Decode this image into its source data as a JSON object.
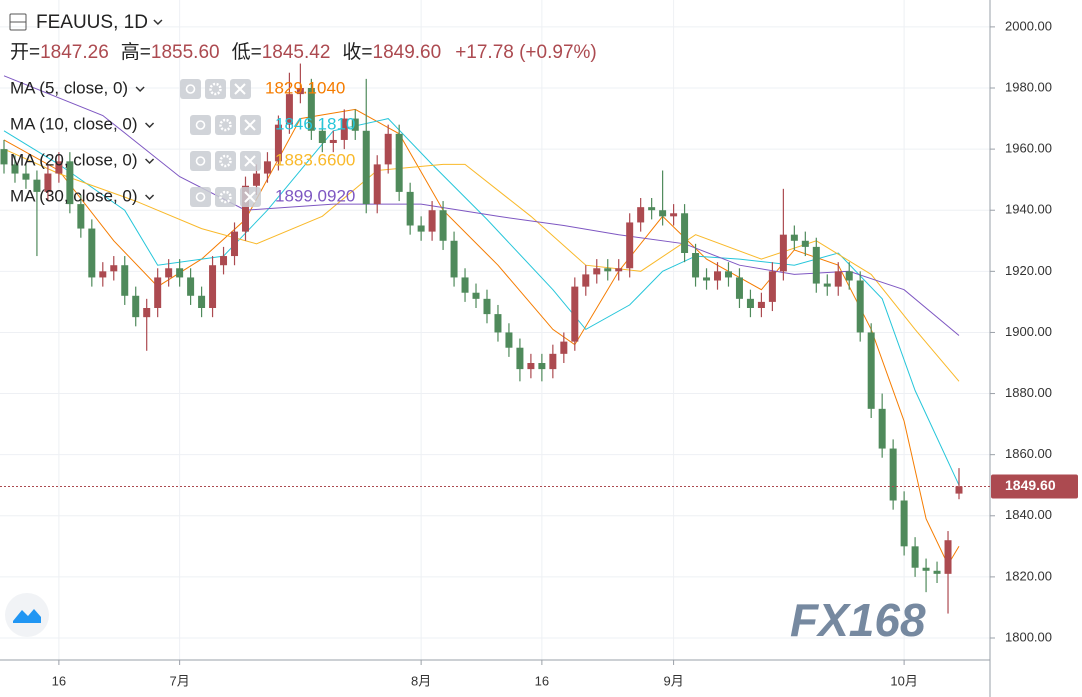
{
  "chart_data": {
    "type": "candlestick",
    "title": "FEAUUS, 1D",
    "ohlc_header": [
      {
        "label": "开=",
        "value": "1847.26"
      },
      {
        "label": "高=",
        "value": "1855.60"
      },
      {
        "label": "低=",
        "value": "1845.42"
      },
      {
        "label": "收=",
        "value": "1849.60"
      }
    ],
    "change": "+17.78 (+0.97%)",
    "categories": [
      null,
      null,
      null,
      null,
      null,
      "16",
      null,
      null,
      null,
      null,
      null,
      null,
      null,
      null,
      null,
      null,
      "7月",
      null,
      null,
      null,
      null,
      null,
      null,
      null,
      null,
      null,
      null,
      null,
      null,
      null,
      null,
      null,
      null,
      null,
      null,
      null,
      null,
      null,
      "8月",
      null,
      null,
      null,
      null,
      null,
      null,
      null,
      null,
      null,
      null,
      "16",
      null,
      null,
      null,
      null,
      null,
      null,
      null,
      null,
      null,
      null,
      null,
      "9月",
      null,
      null,
      null,
      null,
      null,
      null,
      null,
      null,
      null,
      null,
      null,
      null,
      null,
      null,
      null,
      null,
      null,
      null,
      null,
      null,
      "10月",
      null,
      null,
      null,
      null,
      null
    ],
    "open": [
      1960,
      1955,
      1952,
      1950,
      1946,
      1952,
      1956,
      1942,
      1934,
      1918,
      1920,
      1922,
      1912,
      1905,
      1908,
      1918,
      1921,
      1918,
      1912,
      1908,
      1922,
      1925,
      1933,
      1948,
      1952,
      1956,
      1968,
      1978,
      1980,
      1966,
      1962,
      1963,
      1970,
      1966,
      1942,
      1955,
      1965,
      1946,
      1935,
      1933,
      1940,
      1930,
      1918,
      1913,
      1911,
      1906,
      1900,
      1895,
      1888,
      1890,
      1888,
      1893,
      1897,
      1915,
      1919,
      1921,
      1920,
      1921,
      1936,
      1941,
      1940,
      1938,
      1939,
      1926,
      1918,
      1917,
      1920,
      1918,
      1911,
      1908,
      1910,
      1920,
      1932,
      1930,
      1928,
      1916,
      1915,
      1920,
      1917,
      1900,
      1875,
      1862,
      1845,
      1830,
      1823,
      1822,
      1821,
      1847.26
    ],
    "high": [
      1963,
      1958,
      1955,
      1953,
      1955,
      1959,
      1959,
      1945,
      1937,
      1923,
      1925,
      1925,
      1915,
      1911,
      1921,
      1924,
      1924,
      1921,
      1915,
      1925,
      1928,
      1936,
      1951,
      1955,
      1959,
      1971,
      1985,
      1988,
      1983,
      1969,
      1966,
      1973,
      1973,
      1983,
      1958,
      1968,
      1968,
      1949,
      1938,
      1943,
      1943,
      1933,
      1921,
      1916,
      1914,
      1909,
      1903,
      1898,
      1893,
      1893,
      1896,
      1900,
      1918,
      1922,
      1924,
      1924,
      1924,
      1939,
      1944,
      1944,
      1953,
      1942,
      1942,
      1929,
      1921,
      1923,
      1923,
      1921,
      1914,
      1913,
      1923,
      1947,
      1935,
      1933,
      1931,
      1919,
      1923,
      1923,
      1920,
      1903,
      1880,
      1865,
      1848,
      1833,
      1826,
      1825,
      1835,
      1855.6
    ],
    "low": [
      1952,
      1949,
      1947,
      1925,
      1943,
      1949,
      1939,
      1931,
      1915,
      1915,
      1917,
      1909,
      1902,
      1894,
      1905,
      1915,
      1915,
      1909,
      1905,
      1905,
      1919,
      1922,
      1930,
      1945,
      1949,
      1953,
      1965,
      1975,
      1963,
      1959,
      1959,
      1960,
      1963,
      1939,
      1939,
      1952,
      1943,
      1932,
      1930,
      1930,
      1927,
      1915,
      1910,
      1908,
      1903,
      1897,
      1892,
      1884,
      1885,
      1884,
      1885,
      1890,
      1894,
      1912,
      1916,
      1917,
      1917,
      1918,
      1933,
      1937,
      1935,
      1935,
      1923,
      1915,
      1914,
      1914,
      1915,
      1908,
      1905,
      1905,
      1907,
      1917,
      1927,
      1925,
      1913,
      1912,
      1912,
      1914,
      1897,
      1872,
      1859,
      1842,
      1827,
      1820,
      1815,
      1818,
      1808,
      1845.42
    ],
    "close": [
      1955,
      1952,
      1950,
      1946,
      1952,
      1956,
      1942,
      1934,
      1918,
      1920,
      1922,
      1912,
      1905,
      1908,
      1918,
      1921,
      1918,
      1912,
      1908,
      1922,
      1925,
      1933,
      1948,
      1952,
      1956,
      1968,
      1978,
      1980,
      1966,
      1962,
      1963,
      1970,
      1966,
      1942,
      1955,
      1965,
      1946,
      1935,
      1933,
      1940,
      1930,
      1918,
      1913,
      1911,
      1906,
      1900,
      1895,
      1888,
      1890,
      1888,
      1893,
      1897,
      1915,
      1919,
      1921,
      1920,
      1921,
      1936,
      1941,
      1940,
      1938,
      1939,
      1926,
      1918,
      1917,
      1920,
      1918,
      1911,
      1908,
      1910,
      1920,
      1932,
      1930,
      1928,
      1916,
      1915,
      1920,
      1917,
      1900,
      1875,
      1862,
      1845,
      1830,
      1823,
      1822,
      1821,
      1832,
      1849.6
    ],
    "up_color": "#ac4a50",
    "down_color": "#4f8a5b",
    "ma_lines": [
      {
        "name": "MA (5, close, 0)",
        "label": "1829.1040",
        "color": "#f57c00",
        "x": [
          0,
          5,
          10,
          14,
          18,
          22,
          27,
          32,
          36,
          40,
          45,
          50,
          52,
          56,
          60,
          64,
          69,
          72,
          76,
          79,
          82,
          84,
          86,
          87
        ],
        "values": [
          1963,
          1953,
          1930,
          1915,
          1924,
          1937,
          1970,
          1973,
          1965,
          1940,
          1922,
          1901,
          1896,
          1920,
          1938,
          1924,
          1914,
          1927,
          1922,
          1901,
          1871,
          1839,
          1824,
          1830
        ]
      },
      {
        "name": "MA (10, close, 0)",
        "label": "1846.1810",
        "color": "#26c6da",
        "x": [
          0,
          5,
          11,
          14,
          20,
          24,
          30,
          35,
          39,
          44,
          50,
          53,
          57,
          60,
          63,
          67,
          72,
          76,
          80,
          83,
          87
        ],
        "values": [
          1966,
          1955,
          1940,
          1922,
          1925,
          1940,
          1966,
          1970,
          1955,
          1937,
          1914,
          1901,
          1909,
          1920,
          1925,
          1924,
          1922,
          1926,
          1911,
          1881,
          1850
        ]
      },
      {
        "name": "MA (20, close, 0)",
        "label": "1883.6600",
        "color": "#f9b92a",
        "x": [
          0,
          5,
          12,
          18,
          23,
          29,
          34,
          40,
          42,
          48,
          53,
          58,
          63,
          69,
          74,
          79,
          83,
          87
        ],
        "values": [
          1960,
          1952,
          1943,
          1934,
          1929,
          1938,
          1953,
          1955,
          1955,
          1938,
          1922,
          1920,
          1932,
          1924,
          1930,
          1919,
          1901,
          1884
        ]
      },
      {
        "name": "MA (30, close, 0)",
        "label": "1899.0920",
        "color": "#7e57c2",
        "x": [
          0,
          9,
          16,
          22,
          30,
          38,
          45,
          51,
          56,
          62,
          67,
          72,
          77,
          82,
          87
        ],
        "values": [
          1984,
          1971,
          1951,
          1940,
          1942,
          1942,
          1938,
          1935,
          1932,
          1929,
          1922,
          1919,
          1920,
          1914,
          1899
        ]
      }
    ],
    "ylim": [
      1792.8,
      2008.8
    ],
    "yticks": [
      {
        "value": 1800,
        "label": "1800.00"
      },
      {
        "value": 1820,
        "label": "1820.00"
      },
      {
        "value": 1840,
        "label": "1840.00"
      },
      {
        "value": 1860,
        "label": "1860.00"
      },
      {
        "value": 1880,
        "label": "1880.00"
      },
      {
        "value": 1900,
        "label": "1900.00"
      },
      {
        "value": 1920,
        "label": "1920.00"
      },
      {
        "value": 1940,
        "label": "1940.00"
      },
      {
        "value": 1960,
        "label": "1960.00"
      },
      {
        "value": 1980,
        "label": "1980.00"
      },
      {
        "value": 2000,
        "label": "2000.00"
      }
    ],
    "last_price": {
      "value": 1849.6,
      "label": "1849.60"
    },
    "watermark": "FX168",
    "grid": true
  }
}
